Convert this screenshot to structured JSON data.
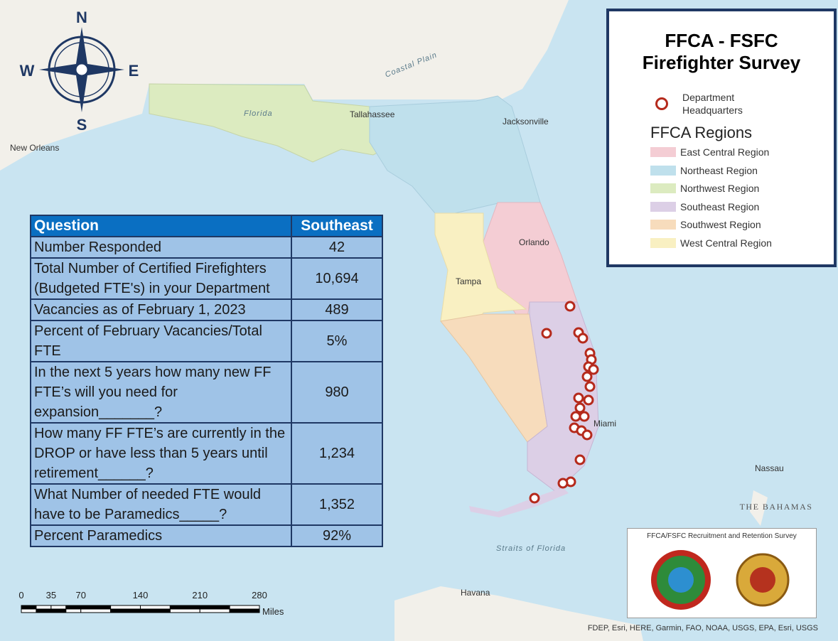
{
  "compass": {
    "n": "N",
    "s": "S",
    "e": "E",
    "w": "W"
  },
  "map_labels": {
    "coastal_plain": "Coastal Plain",
    "florida": "Florida",
    "tallahassee": "Tallahassee",
    "jacksonville": "Jacksonville",
    "new_orleans": "New Orleans",
    "orlando": "Orlando",
    "tampa": "Tampa",
    "miami": "Miami",
    "nassau": "Nassau",
    "bahamas": "THE BAHAMAS",
    "straits": "Straits of Florida",
    "havana": "Havana"
  },
  "legend": {
    "title": "FFCA - FSFC Firefighter Survey",
    "hq": "Department Headquarters",
    "regions_title": "FFCA Regions",
    "regions": [
      {
        "name": "East Central Region",
        "color": "#f4cdd4"
      },
      {
        "name": "Northeast Region",
        "color": "#bfe0ec"
      },
      {
        "name": "Northwest Region",
        "color": "#dcebc0"
      },
      {
        "name": "Southeast Region",
        "color": "#dccfe6"
      },
      {
        "name": "Southwest Region",
        "color": "#f7dcbc"
      },
      {
        "name": "West Central Region",
        "color": "#f9f0c2"
      }
    ]
  },
  "table": {
    "header": [
      "Question",
      "Southeast"
    ],
    "rows": [
      [
        "Number Responded",
        "42"
      ],
      [
        "Total Number of Certified Firefighters (Budgeted FTE's) in your Department",
        "10,694"
      ],
      [
        "Vacancies as of February 1, 2023",
        "489"
      ],
      [
        "Percent of February Vacancies/Total FTE",
        "5%"
      ],
      [
        "In the next 5 years how many new FF FTE’s will you need for expansion_______?",
        "980"
      ],
      [
        "How many FF FTE’s are currently in the DROP or have less than 5 years until retirement______?",
        "1,234"
      ],
      [
        "What Number of needed FTE would have to be Paramedics_____?",
        "1,352"
      ],
      [
        "Percent Paramedics",
        "92%"
      ]
    ]
  },
  "scale": {
    "ticks": [
      0,
      35,
      70,
      140,
      210,
      280
    ],
    "unit": "Miles"
  },
  "logo_box": {
    "title": "FFCA/FSFC Recruitment and Retention Survey"
  },
  "attribution": "FDEP, Esri, HERE, Garmin, FAO, NOAA, USGS, EPA, Esri, USGS"
}
